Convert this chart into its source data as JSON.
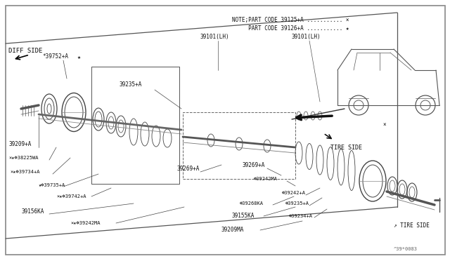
{
  "bg_color": "#ffffff",
  "border_color": "#aaaaaa",
  "line_color": "#444444",
  "text_color": "#111111",
  "note1": "NOTE;PART CODE 39125+A ........... ×",
  "note2": "     PART CODE 39126+A ........... ★",
  "ref_code": "^39*0083",
  "figsize": [
    6.4,
    3.72
  ],
  "dpi": 100
}
